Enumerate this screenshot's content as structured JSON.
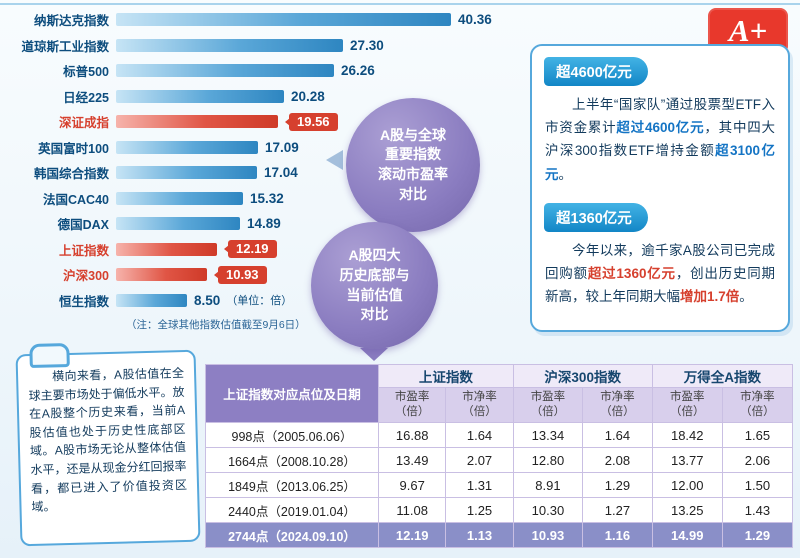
{
  "logo": {
    "text": "A+"
  },
  "colors": {
    "accent_blue": "#1e86c8",
    "highlight_red": "#d6402e",
    "bubble_purple": "#8a7cc0",
    "table_header_purple": "#8d7fc3"
  },
  "chart_data": [
    {
      "type": "bar",
      "title": "A股与全球重要指数滚动市盈率对比",
      "xlabel": "",
      "ylabel": "",
      "unit": "倍",
      "xlim": [
        0,
        45
      ],
      "footnote": "（注：全球其他指数估值截至9月6日）",
      "items": [
        {
          "label": "纳斯达克指数",
          "value": 40.36,
          "value_str": "40.36",
          "highlight": false
        },
        {
          "label": "道琼斯工业指数",
          "value": 27.3,
          "value_str": "27.30",
          "highlight": false
        },
        {
          "label": "标普500",
          "value": 26.26,
          "value_str": "26.26",
          "highlight": false
        },
        {
          "label": "日经225",
          "value": 20.28,
          "value_str": "20.28",
          "highlight": false
        },
        {
          "label": "深证成指",
          "value": 19.56,
          "value_str": "19.56",
          "highlight": true
        },
        {
          "label": "英国富时100",
          "value": 17.09,
          "value_str": "17.09",
          "highlight": false
        },
        {
          "label": "韩国综合指数",
          "value": 17.04,
          "value_str": "17.04",
          "highlight": false
        },
        {
          "label": "法国CAC40",
          "value": 15.32,
          "value_str": "15.32",
          "highlight": false
        },
        {
          "label": "德国DAX",
          "value": 14.89,
          "value_str": "14.89",
          "highlight": false
        },
        {
          "label": "上证指数",
          "value": 12.19,
          "value_str": "12.19",
          "highlight": true
        },
        {
          "label": "沪深300",
          "value": 10.93,
          "value_str": "10.93",
          "highlight": true
        },
        {
          "label": "恒生指数",
          "value": 8.5,
          "value_str": "8.50",
          "highlight": false,
          "unit_note": "（单位：倍）"
        }
      ]
    },
    {
      "type": "table",
      "title": "A股四大历史底部与当前估值对比",
      "corner_header": "上证指数对应点位及日期",
      "groups": [
        "上证指数",
        "沪深300指数",
        "万得全A指数"
      ],
      "subheaders": [
        "市盈率\n（倍）",
        "市净率\n（倍）"
      ],
      "rows": [
        {
          "label": "998点（2005.06.06）",
          "values": [
            "16.88",
            "1.64",
            "13.34",
            "1.64",
            "18.42",
            "1.65"
          ],
          "highlight": false
        },
        {
          "label": "1664点（2008.10.28）",
          "values": [
            "13.49",
            "2.07",
            "12.80",
            "2.08",
            "13.77",
            "2.06"
          ],
          "highlight": false
        },
        {
          "label": "1849点（2013.06.25）",
          "values": [
            "9.67",
            "1.31",
            "8.91",
            "1.29",
            "12.00",
            "1.50"
          ],
          "highlight": false
        },
        {
          "label": "2440点（2019.01.04）",
          "values": [
            "11.08",
            "1.25",
            "10.30",
            "1.27",
            "13.25",
            "1.43"
          ],
          "highlight": false
        },
        {
          "label": "2744点（2024.09.10）",
          "values": [
            "12.19",
            "1.13",
            "10.93",
            "1.16",
            "14.99",
            "1.29"
          ],
          "highlight": true
        }
      ]
    }
  ],
  "bubbles": {
    "b1": {
      "lines": [
        "A股与全球",
        "重要指数",
        "滚动市盈率",
        "对比"
      ]
    },
    "b2": {
      "lines": [
        "A股四大",
        "历史底部与",
        "当前估值",
        "对比"
      ]
    }
  },
  "panel": {
    "badge1": "超4600亿元",
    "para1": [
      {
        "t": "上半年“国家队”通过股票型ETF入市资金累计",
        "hl": ""
      },
      {
        "t": "超过4600亿元",
        "hl": "blue"
      },
      {
        "t": "，其中四大沪深300指数ETF增持金额",
        "hl": ""
      },
      {
        "t": "超3100亿元",
        "hl": "blue"
      },
      {
        "t": "。",
        "hl": ""
      }
    ],
    "badge2": "超1360亿元",
    "para2": [
      {
        "t": "今年以来，逾千家A股公司已完成回购额",
        "hl": ""
      },
      {
        "t": "超过1360亿元",
        "hl": "red"
      },
      {
        "t": "，创出历史同期新高，较上年同期大幅",
        "hl": ""
      },
      {
        "t": "增加1.7倍",
        "hl": "red"
      },
      {
        "t": "。",
        "hl": ""
      }
    ]
  },
  "note": {
    "text": "横向来看，A股估值在全球主要市场处于偏低水平。放在A股整个历史来看，当前A股估值也处于历史性底部区域。A股市场无论从整体估值水平，还是从现金分红回报率看，都已进入了价值投资区域。"
  }
}
